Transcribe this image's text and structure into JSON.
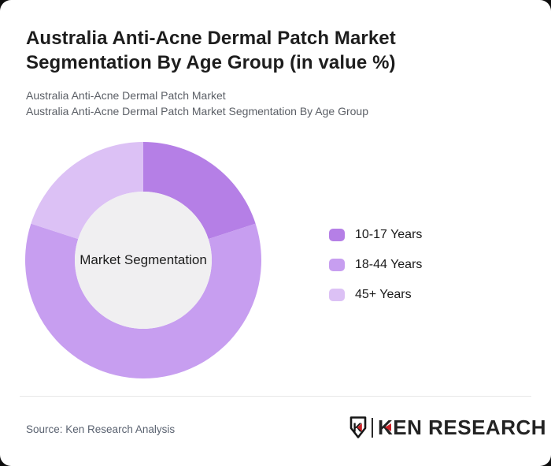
{
  "page": {
    "outer_background": "#0e0e0e",
    "card_background": "#ffffff"
  },
  "header": {
    "title": "Australia Anti-Acne Dermal Patch Market Segmentation By Age Group (in value %)",
    "subtitle_line1": "Australia Anti-Acne Dermal Patch Market",
    "subtitle_line2": "Australia Anti-Acne Dermal Patch Market Segmentation By Age Group"
  },
  "chart_data": {
    "type": "pie",
    "subtype": "donut",
    "title": "Australia Anti-Acne Dermal Patch Market Segmentation By Age Group (in value %)",
    "center_label": "Market Segmentation",
    "categories": [
      "10-17 Years",
      "18-44 Years",
      "45+ Years"
    ],
    "values": [
      20,
      60,
      20
    ],
    "unit": "% of value",
    "colors": [
      "#b57fe6",
      "#c79ef0",
      "#dcc1f5"
    ],
    "start_angle_deg": 0,
    "direction": "clockwise",
    "inner_radius_ratio": 0.58,
    "center_fill": "#f0eff1",
    "legend_position": "right",
    "data_labels_shown": false
  },
  "footer": {
    "source": "Source: Ken Research Analysis",
    "logo_text": "KEN RESEARCH",
    "logo_badge_letter": "K",
    "brand_red": "#cc2127"
  }
}
